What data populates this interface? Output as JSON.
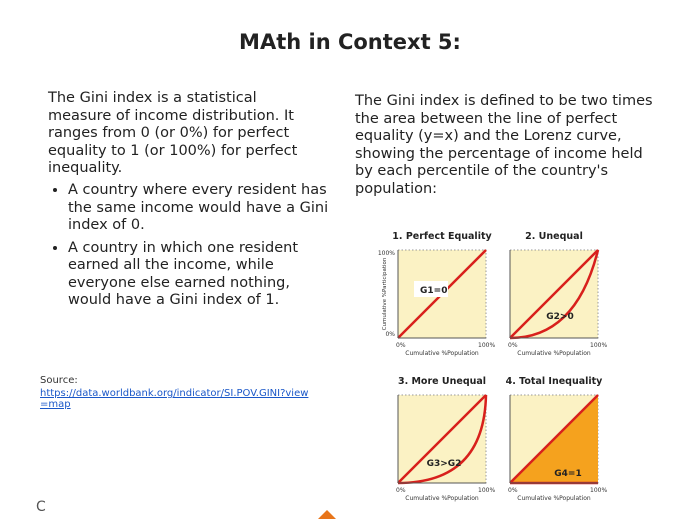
{
  "title": "MAth in Context 5:",
  "left": {
    "intro": "The Gini index is a statistical measure of income distribution. It ranges from 0 (or 0%) for perfect equality to 1 (or 100%) for perfect inequality.",
    "bullets": [
      "A country where every resident has the same income would have a Gini index of 0.",
      "A country in which one resident earned all the income, while everyone else earned nothing, would have a Gini index of 1."
    ],
    "source_label": "Source:",
    "source_link": "https://data.worldbank.org/indicator/SI.POV.GINI?view=map"
  },
  "right": {
    "text": "The Gini index is defined to be two times the area between the line of perfect equality (y=x) and the Lorenz curve, showing the percentage of income held by each percentile of the country's population:"
  },
  "diagram": {
    "y_label": "Cumulative %Participation",
    "y_top": "100%",
    "y_bottom": "0%",
    "x_start": "0%",
    "x_end": "100%",
    "panels": [
      {
        "title": "1. Perfect Equality",
        "label": "G1=0",
        "x_label": "Cumulative %Population"
      },
      {
        "title": "2. Unequal",
        "label": "G2>0",
        "x_label": "Cumulative %Population"
      },
      {
        "title": "3. More Unequal",
        "label": "G3>G2",
        "x_label": "Cumulative %Population"
      },
      {
        "title": "4. Total Inequality",
        "label": "G4=1",
        "x_label": "Cumulative %Population"
      }
    ]
  },
  "footer": {
    "letter": "C"
  }
}
